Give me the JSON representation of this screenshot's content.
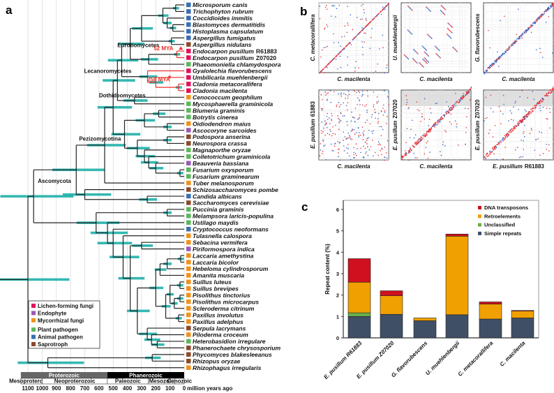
{
  "panels": {
    "a": "a",
    "b": "b",
    "c": "c"
  },
  "categories": [
    {
      "code": "L",
      "label": "Lichen-forming fungi",
      "color": "#e0135c"
    },
    {
      "code": "E",
      "label": "Endophyte",
      "color": "#9b59b6"
    },
    {
      "code": "M",
      "label": "Mycorrhizal fungi",
      "color": "#f0921e"
    },
    {
      "code": "P",
      "label": "Plant pathogen",
      "color": "#5cb85c"
    },
    {
      "code": "A",
      "label": "Animal pathogen",
      "color": "#3a6eb5"
    },
    {
      "code": "S",
      "label": "Saprotroph",
      "color": "#8b4a2b"
    }
  ],
  "species": [
    {
      "name": "Microsporum canis",
      "cat": "A"
    },
    {
      "name": "Trichophyton rubrum",
      "cat": "A"
    },
    {
      "name": "Coccidioides immitis",
      "cat": "A"
    },
    {
      "name": "Blastomyces dermatitidis",
      "cat": "A"
    },
    {
      "name": "Histoplasma capsulatum",
      "cat": "A"
    },
    {
      "name": "Aspergillus fumigatus",
      "cat": "A"
    },
    {
      "name": "Aspergillus nidulans",
      "cat": "S"
    },
    {
      "name": "Endocarpon pusillum",
      "strain": "R61883",
      "cat": "L"
    },
    {
      "name": "Endocarpon pusillum",
      "strain": "Z07020",
      "cat": "L"
    },
    {
      "name": "Phaeomoniella chlamydospora",
      "cat": "P"
    },
    {
      "name": "Gyalolechia flavorubescens",
      "cat": "L"
    },
    {
      "name": "Umbilicaria muehlenbergii",
      "cat": "L"
    },
    {
      "name": "Cladonia metacorallifera",
      "cat": "L"
    },
    {
      "name": "Cladonia macilenta",
      "cat": "L"
    },
    {
      "name": "Cenococcum geophilum",
      "cat": "M"
    },
    {
      "name": "Mycosphaerella graminicola",
      "cat": "P"
    },
    {
      "name": "Blumeria graminis",
      "cat": "P"
    },
    {
      "name": "Botrytis cinerea",
      "cat": "P"
    },
    {
      "name": "Oidiodendron maius",
      "cat": "M"
    },
    {
      "name": "Ascocoryne sarcoides",
      "cat": "E"
    },
    {
      "name": "Podospora anserina",
      "cat": "S"
    },
    {
      "name": "Neurospora crassa",
      "cat": "S"
    },
    {
      "name": "Magnaporthe oryzae",
      "cat": "P"
    },
    {
      "name": "Colletotrichum graminicola",
      "cat": "P"
    },
    {
      "name": "Beauveria bassiana",
      "cat": "E"
    },
    {
      "name": "Fusarium oxysporum",
      "cat": "P"
    },
    {
      "name": "Fusarium graminearum",
      "cat": "P"
    },
    {
      "name": "Tuber melanosporum",
      "cat": "M"
    },
    {
      "name": "Schizosaccharomyces pombe",
      "cat": "S"
    },
    {
      "name": "Candida albicans",
      "cat": "A"
    },
    {
      "name": "Saccharomyces cerevisiae",
      "cat": "S"
    },
    {
      "name": "Puccinia graminis",
      "cat": "P"
    },
    {
      "name": "Melampsora laricis-populina",
      "cat": "P"
    },
    {
      "name": "Ustilago maydis",
      "cat": "P"
    },
    {
      "name": "Cryptococcus neoformans",
      "cat": "A"
    },
    {
      "name": "Tulasnella calospora",
      "cat": "M"
    },
    {
      "name": "Sebacina vermifera",
      "cat": "M"
    },
    {
      "name": "Piriformospora indica",
      "cat": "E"
    },
    {
      "name": "Laccaria amethystina",
      "cat": "M"
    },
    {
      "name": "Laccaria bicolor",
      "cat": "M"
    },
    {
      "name": "Hebeloma cylindrosporum",
      "cat": "M"
    },
    {
      "name": "Amanita muscaria",
      "cat": "M"
    },
    {
      "name": "Suillus luteus",
      "cat": "M"
    },
    {
      "name": "Suillus brevipes",
      "cat": "M"
    },
    {
      "name": "Pisolithus tinctorius",
      "cat": "M"
    },
    {
      "name": "Pisolithus microcarpus",
      "cat": "M"
    },
    {
      "name": "Scleroderma citrinum",
      "cat": "M"
    },
    {
      "name": "Paxillus involutus",
      "cat": "M"
    },
    {
      "name": "Paxillus adelphus",
      "cat": "M"
    },
    {
      "name": "Serpula lacrymans",
      "cat": "S"
    },
    {
      "name": "Piloderma croceum",
      "cat": "M"
    },
    {
      "name": "Heterobasidion irregulare",
      "cat": "P"
    },
    {
      "name": "Phanerochaete chrysosporium",
      "cat": "S"
    },
    {
      "name": "Phycomyces blakesleeanus",
      "cat": "S"
    },
    {
      "name": "Rhizopus oryzae",
      "cat": "S"
    },
    {
      "name": "Rhizophagus irregularis",
      "cat": "M"
    }
  ],
  "tree": [
    {
      "id": "root",
      "age": 1100,
      "c": [
        "dik",
        "early"
      ]
    },
    {
      "id": "dik",
      "age": 1060,
      "c": [
        "asco",
        "basid"
      ]
    },
    {
      "id": "asco",
      "age": 760,
      "c": [
        "pez",
        "yeast"
      ]
    },
    {
      "id": "pez",
      "age": 560,
      "c": [
        "p1",
        27
      ]
    },
    {
      "id": "p1",
      "age": 500,
      "c": [
        "eld",
        "leosord"
      ]
    },
    {
      "id": "eld",
      "age": 470,
      "c": [
        "el",
        "doth"
      ]
    },
    {
      "id": "el",
      "age": 440,
      "c": [
        "euro",
        "lec"
      ]
    },
    {
      "id": "euro",
      "age": 380,
      "c": [
        "onyasp",
        "verr"
      ]
    },
    {
      "id": "onyasp",
      "age": 300,
      "c": [
        "ony",
        "asp"
      ]
    },
    {
      "id": "ony",
      "age": 150,
      "c": [
        "ony1",
        "ony2"
      ]
    },
    {
      "id": "ony1",
      "age": 60,
      "c": [
        0,
        1
      ]
    },
    {
      "id": "ony2",
      "age": 120,
      "c": [
        2,
        "ony3"
      ]
    },
    {
      "id": "ony3",
      "age": 80,
      "c": [
        3,
        4
      ]
    },
    {
      "id": "asp",
      "age": 90,
      "c": [
        5,
        6
      ]
    },
    {
      "id": "verr",
      "age": 250,
      "c": [
        "endo",
        9
      ]
    },
    {
      "id": "endo",
      "age": 52,
      "hl": true,
      "c": [
        7,
        8
      ]
    },
    {
      "id": "lec",
      "age": 258,
      "hl": true,
      "c": [
        10,
        "lec1"
      ]
    },
    {
      "id": "lec1",
      "age": 200,
      "hl": true,
      "c": [
        11,
        "clad"
      ]
    },
    {
      "id": "clad",
      "age": 40,
      "hl": true,
      "c": [
        12,
        13
      ]
    },
    {
      "id": "doth",
      "age": 350,
      "c": [
        14,
        15
      ]
    },
    {
      "id": "leosord",
      "age": 420,
      "c": [
        "leo",
        "sord"
      ]
    },
    {
      "id": "leo",
      "age": 280,
      "c": [
        "leo1",
        "leo2"
      ]
    },
    {
      "id": "leo1",
      "age": 180,
      "c": [
        16,
        17
      ]
    },
    {
      "id": "leo2",
      "age": 120,
      "c": [
        18,
        19
      ]
    },
    {
      "id": "sord",
      "age": 330,
      "c": [
        "sord1",
        "sord2"
      ]
    },
    {
      "id": "sord1",
      "age": 120,
      "c": [
        20,
        21
      ]
    },
    {
      "id": "sord2",
      "age": 280,
      "c": [
        22,
        "sord3"
      ]
    },
    {
      "id": "sord3",
      "age": 250,
      "c": [
        23,
        "sord4"
      ]
    },
    {
      "id": "sord4",
      "age": 200,
      "c": [
        24,
        "fus"
      ]
    },
    {
      "id": "fus",
      "age": 30,
      "c": [
        25,
        26
      ]
    },
    {
      "id": "yeast",
      "age": 700,
      "c": [
        28,
        "sacch"
      ]
    },
    {
      "id": "sacch",
      "age": 260,
      "c": [
        29,
        30
      ]
    },
    {
      "id": "basid",
      "age": 620,
      "c": [
        "pucc",
        "b1"
      ]
    },
    {
      "id": "pucc",
      "age": 120,
      "c": [
        31,
        32
      ]
    },
    {
      "id": "b1",
      "age": 540,
      "c": [
        33,
        "b2"
      ]
    },
    {
      "id": "b2",
      "age": 500,
      "c": [
        34,
        "agar"
      ]
    },
    {
      "id": "agar",
      "age": 430,
      "c": [
        35,
        "agar1"
      ]
    },
    {
      "id": "agar1",
      "age": 380,
      "c": [
        "seb",
        "rest"
      ]
    },
    {
      "id": "seb",
      "age": 300,
      "c": [
        36,
        37
      ]
    },
    {
      "id": "rest",
      "age": 330,
      "c": [
        "ab",
        "oth"
      ]
    },
    {
      "id": "ab",
      "age": 200,
      "c": [
        "agaric",
        "bolet"
      ]
    },
    {
      "id": "agaric",
      "age": 170,
      "c": [
        "agaric1",
        41
      ]
    },
    {
      "id": "agaric1",
      "age": 120,
      "c": [
        "lacc",
        40
      ]
    },
    {
      "id": "lacc",
      "age": 25,
      "c": [
        38,
        39
      ]
    },
    {
      "id": "bolet",
      "age": 130,
      "c": [
        "bolet1",
        "pax"
      ]
    },
    {
      "id": "bolet1",
      "age": 100,
      "c": [
        "suil",
        "piso"
      ]
    },
    {
      "id": "suil",
      "age": 30,
      "c": [
        42,
        43
      ]
    },
    {
      "id": "piso",
      "age": 70,
      "c": [
        "piso1",
        46
      ]
    },
    {
      "id": "piso1",
      "age": 30,
      "c": [
        44,
        45
      ]
    },
    {
      "id": "pax",
      "age": 40,
      "c": [
        47,
        48
      ]
    },
    {
      "id": "oth",
      "age": 260,
      "c": [
        49,
        "oth1"
      ]
    },
    {
      "id": "oth1",
      "age": 230,
      "c": [
        50,
        "oth2"
      ]
    },
    {
      "id": "oth2",
      "age": 190,
      "c": [
        51,
        52
      ]
    },
    {
      "id": "early",
      "age": 960,
      "c": [
        "muco",
        55
      ]
    },
    {
      "id": "muco",
      "age": 225,
      "c": [
        53,
        54
      ]
    }
  ],
  "clades": [
    {
      "label": "Eurotiomycetes",
      "age": 470,
      "row": 6.4
    },
    {
      "label": "Lecanoromycetes",
      "age": 705,
      "row": 10.3
    },
    {
      "label": "Dothideomycetes",
      "age": 600,
      "row": 14
    },
    {
      "label": "Pezizomycotina",
      "age": 740,
      "row": 20.6
    },
    {
      "label": "Ascomycota",
      "age": 1030,
      "row": 27
    }
  ],
  "annotations": [
    {
      "label": "52 MYA",
      "age": 215,
      "row": 6.9
    },
    {
      "label": "258 MYA",
      "age": 260,
      "row": 11.6
    }
  ],
  "timeline": {
    "eons": [
      {
        "label": "Proterozoic",
        "from": 1150,
        "to": 541,
        "color": "#666666"
      },
      {
        "label": "Phanerozoic",
        "from": 541,
        "to": 0,
        "color": "#000000"
      }
    ],
    "eras": [
      {
        "label": "Mesoproterozoic",
        "from": 1150,
        "to": 1000
      },
      {
        "label": "Neoproterozoic",
        "from": 1000,
        "to": 541
      },
      {
        "label": "Paleozoic",
        "from": 541,
        "to": 252
      },
      {
        "label": "Mesozoic",
        "from": 252,
        "to": 66
      },
      {
        "label": "Cenozoic",
        "from": 66,
        "to": 0
      }
    ],
    "ticks": [
      1100,
      1000,
      900,
      800,
      700,
      600,
      500,
      400,
      300,
      200,
      100,
      0
    ],
    "unit": "million years ago"
  },
  "dotplots": [
    {
      "x": "C. macilenta",
      "y": "C. metacorallifera",
      "kind": "diag"
    },
    {
      "x": "C. macilenta",
      "y": "U. muehlenbergii",
      "kind": "scatter"
    },
    {
      "x": "C. macilenta",
      "y": "G. flavorubescens",
      "kind": "diagblue"
    },
    {
      "x": "C. macilenta",
      "y_italic": "E. pusillum",
      "y_strain": "61883",
      "kind": "noise"
    },
    {
      "x": "C. macilenta",
      "y_italic": "E. pusillum",
      "y_strain": "Z07020",
      "kind": "diaggrey"
    },
    {
      "x_italic": "E. pusillum",
      "x_strain": "R61883",
      "y_italic": "E. pusillum",
      "y_strain": "Z07020",
      "kind": "diaggrey"
    }
  ],
  "chart_data": {
    "type": "bar",
    "stacked": true,
    "title": "",
    "xlabel": "",
    "ylabel": "Repeat content (%)",
    "ylim": [
      0,
      6.4
    ],
    "yticks": [
      0,
      1,
      2,
      3,
      4,
      5,
      6
    ],
    "categories": [
      "E. pusillum R61883",
      "E. pusillum Z07020",
      "G. flavorubescens",
      "U. muehlenbergii",
      "C. metacorallifera",
      "C. macilenta"
    ],
    "series": [
      {
        "name": "Simple repeats",
        "color": "#3f4f66",
        "values": [
          1.0,
          1.1,
          0.8,
          1.08,
          0.88,
          0.93
        ]
      },
      {
        "name": "Unclassified",
        "color": "#6ab04c",
        "values": [
          0.17,
          0,
          0,
          0,
          0,
          0
        ]
      },
      {
        "name": "Retroelements",
        "color": "#f0a000",
        "values": [
          1.43,
          0.87,
          0.13,
          3.67,
          0.7,
          0.32
        ]
      },
      {
        "name": "DNA transposons",
        "color": "#d0101e",
        "values": [
          1.1,
          0.23,
          0,
          0.1,
          0.1,
          0.03
        ]
      }
    ],
    "legend": "top-right"
  }
}
